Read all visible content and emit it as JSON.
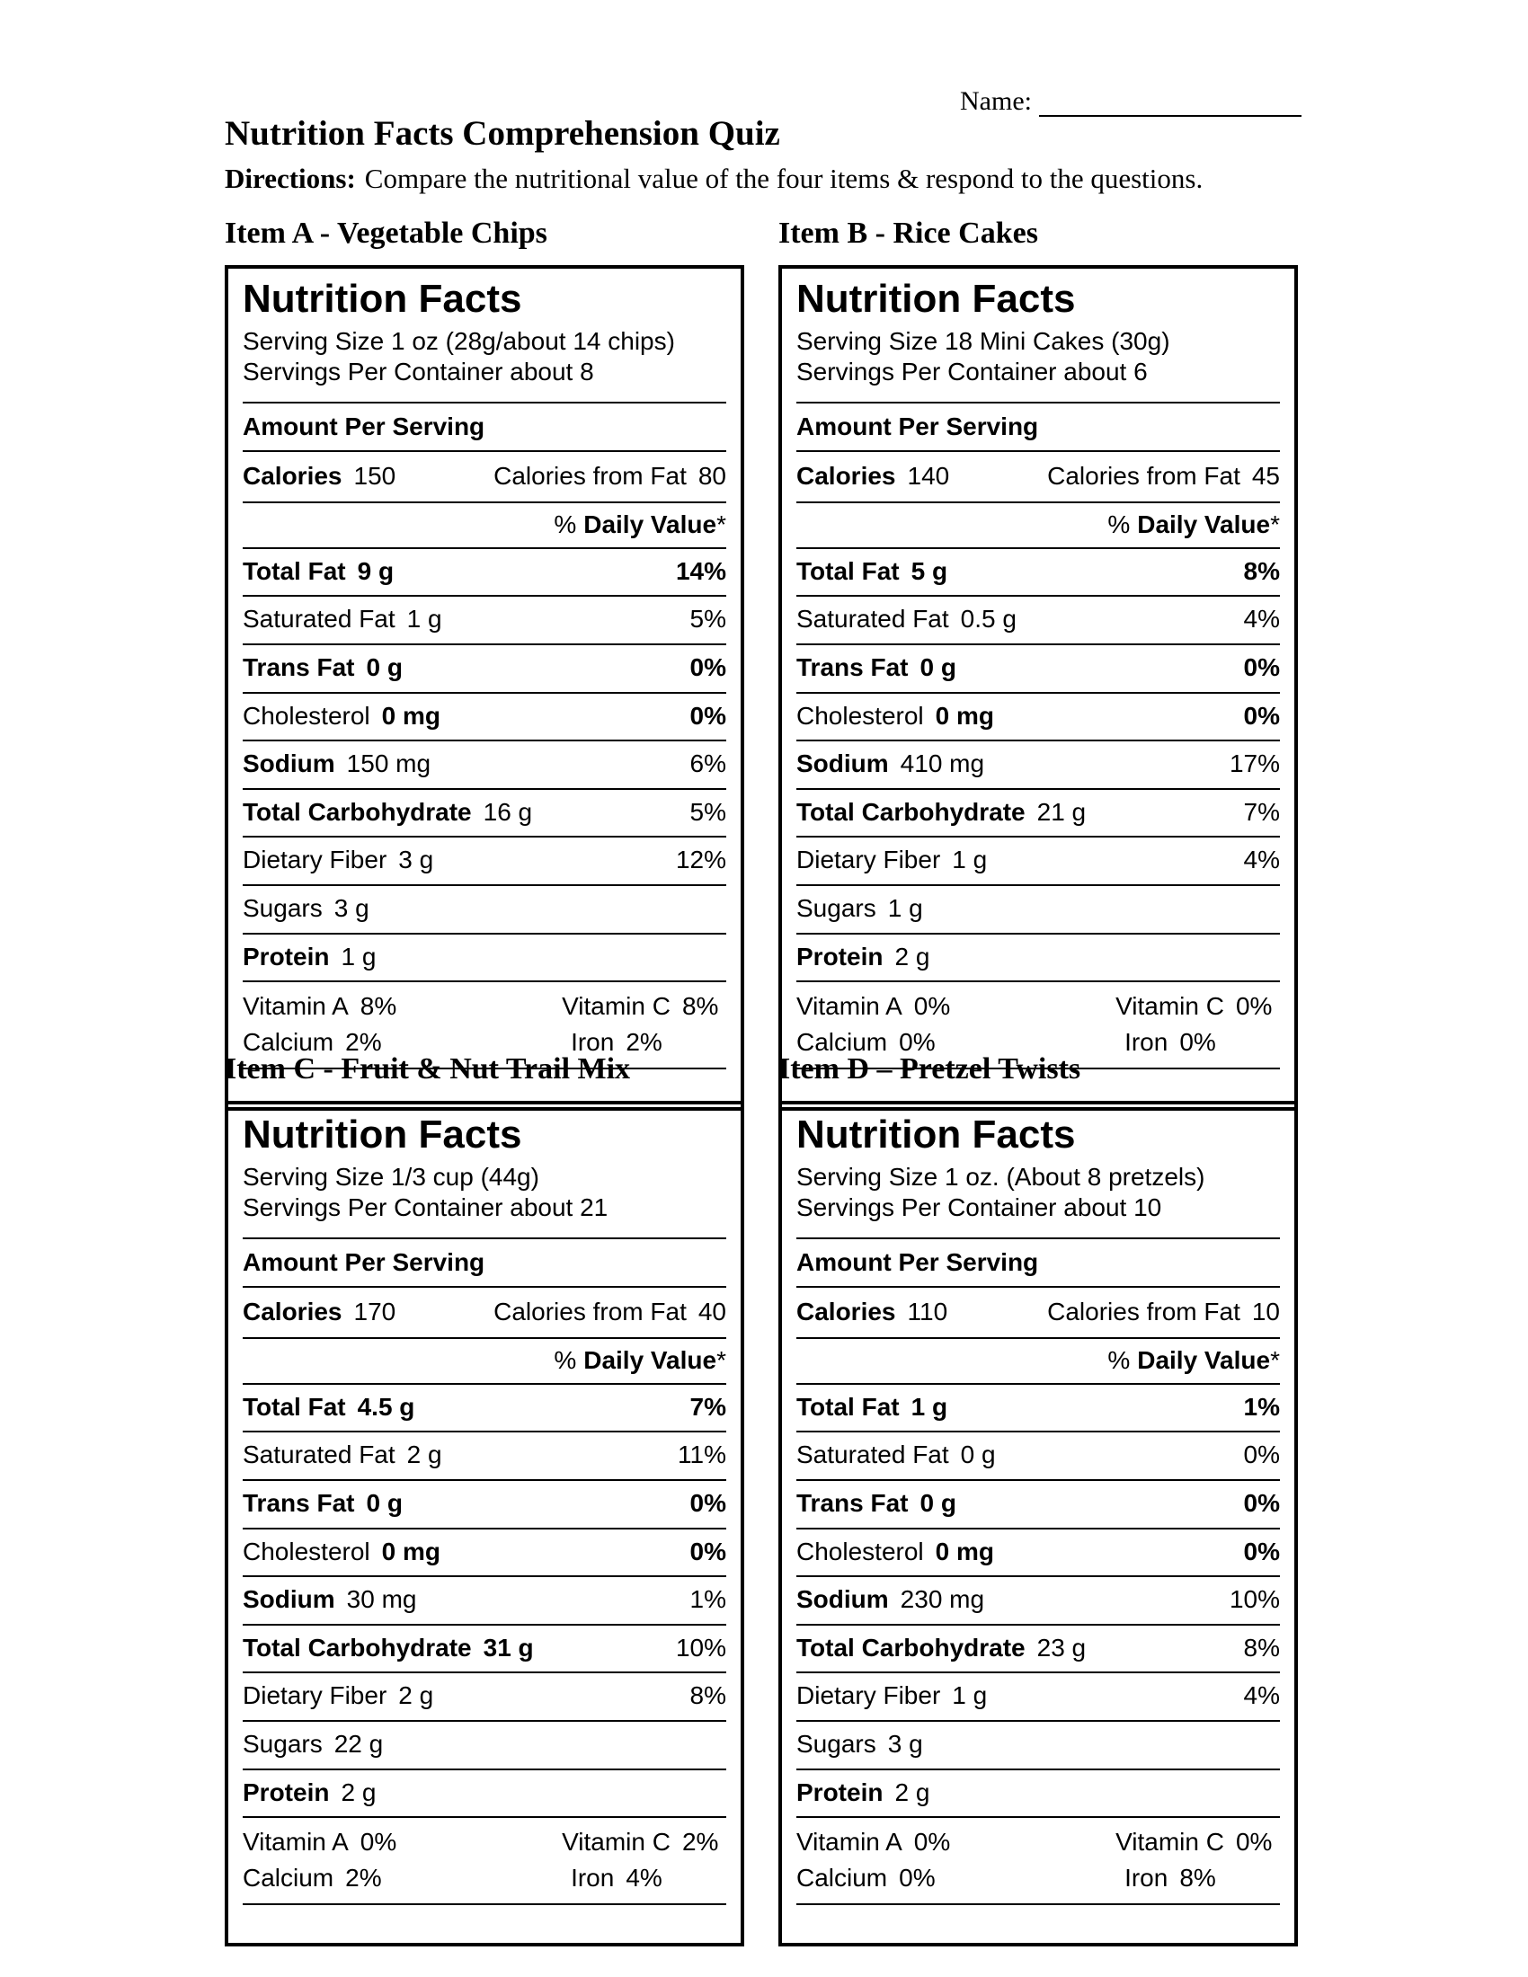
{
  "header": {
    "name_label": "Name:",
    "title": "Nutrition Facts Comprehension Quiz",
    "directions_label": "Directions:",
    "directions_text": "Compare the nutritional value of the four items & respond to the questions."
  },
  "label_strings": {
    "nf_title": "Nutrition Facts",
    "amount_per_serving": "Amount Per Serving",
    "calories_label": "Calories",
    "calories_from_fat_label": "Calories from Fat",
    "daily_value_prefix": "%",
    "daily_value_bold": "Daily Value",
    "daily_value_suffix": "*"
  },
  "items": [
    {
      "id": "A",
      "heading": "Item A - Vegetable Chips",
      "serving_size": "Serving Size 1 oz (28g/about 14 chips)",
      "servings_per_container": "Servings Per Container about 8",
      "calories": "150",
      "calories_from_fat": "80",
      "rows": [
        {
          "label": "Total Fat",
          "amount": "9 g",
          "pct": "14%",
          "bold_label": true,
          "bold_amount": true,
          "bold_pct": true
        },
        {
          "label": "Saturated Fat",
          "amount": "1 g",
          "pct": "5%",
          "bold_label": false,
          "bold_amount": false,
          "bold_pct": false
        },
        {
          "label": "Trans Fat",
          "amount": "0 g",
          "pct": "0%",
          "bold_label": true,
          "bold_amount": true,
          "bold_pct": true
        },
        {
          "label": "Cholesterol",
          "amount": "0 mg",
          "pct": "0%",
          "bold_label": false,
          "bold_amount": true,
          "bold_pct": true
        },
        {
          "label": "Sodium",
          "amount": "150 mg",
          "pct": "6%",
          "bold_label": true,
          "bold_amount": false,
          "bold_pct": false
        },
        {
          "label": "Total Carbohydrate",
          "amount": "16 g",
          "pct": "5%",
          "bold_label": true,
          "bold_amount": false,
          "bold_pct": false
        },
        {
          "label": "Dietary Fiber",
          "amount": "3 g",
          "pct": "12%",
          "bold_label": false,
          "bold_amount": false,
          "bold_pct": false
        },
        {
          "label": "Sugars",
          "amount": "3 g",
          "pct": "",
          "bold_label": false,
          "bold_amount": false,
          "bold_pct": false
        },
        {
          "label": "Protein",
          "amount": "1 g",
          "pct": "",
          "bold_label": true,
          "bold_amount": false,
          "bold_pct": false
        }
      ],
      "micros": [
        {
          "name": "Vitamin A",
          "value": "8%"
        },
        {
          "name": "Vitamin C",
          "value": "8%"
        },
        {
          "name": "Calcium",
          "value": "2%"
        },
        {
          "name": "Iron",
          "value": "2%"
        }
      ]
    },
    {
      "id": "B",
      "heading": "Item B - Rice Cakes",
      "serving_size": "Serving Size 18 Mini Cakes (30g)",
      "servings_per_container": "Servings Per Container about 6",
      "calories": "140",
      "calories_from_fat": "45",
      "rows": [
        {
          "label": "Total Fat",
          "amount": "5 g",
          "pct": "8%",
          "bold_label": true,
          "bold_amount": true,
          "bold_pct": true
        },
        {
          "label": "Saturated Fat",
          "amount": "0.5 g",
          "pct": "4%",
          "bold_label": false,
          "bold_amount": false,
          "bold_pct": false
        },
        {
          "label": "Trans Fat",
          "amount": "0 g",
          "pct": "0%",
          "bold_label": true,
          "bold_amount": true,
          "bold_pct": true
        },
        {
          "label": "Cholesterol",
          "amount": "0 mg",
          "pct": "0%",
          "bold_label": false,
          "bold_amount": true,
          "bold_pct": true
        },
        {
          "label": "Sodium",
          "amount": "410 mg",
          "pct": "17%",
          "bold_label": true,
          "bold_amount": false,
          "bold_pct": false
        },
        {
          "label": "Total Carbohydrate",
          "amount": "21 g",
          "pct": "7%",
          "bold_label": true,
          "bold_amount": false,
          "bold_pct": false
        },
        {
          "label": "Dietary Fiber",
          "amount": "1 g",
          "pct": "4%",
          "bold_label": false,
          "bold_amount": false,
          "bold_pct": false
        },
        {
          "label": "Sugars",
          "amount": "1 g",
          "pct": "",
          "bold_label": false,
          "bold_amount": false,
          "bold_pct": false
        },
        {
          "label": "Protein",
          "amount": "2 g",
          "pct": "",
          "bold_label": true,
          "bold_amount": false,
          "bold_pct": false
        }
      ],
      "micros": [
        {
          "name": "Vitamin A",
          "value": "0%"
        },
        {
          "name": "Vitamin C",
          "value": "0%"
        },
        {
          "name": "Calcium",
          "value": "0%"
        },
        {
          "name": "Iron",
          "value": "0%"
        }
      ]
    },
    {
      "id": "C",
      "heading": "Item C - Fruit & Nut Trail Mix",
      "serving_size": "Serving Size 1/3 cup (44g)",
      "servings_per_container": "Servings Per Container about 21",
      "calories": "170",
      "calories_from_fat": "40",
      "rows": [
        {
          "label": "Total Fat",
          "amount": "4.5 g",
          "pct": "7%",
          "bold_label": true,
          "bold_amount": true,
          "bold_pct": true
        },
        {
          "label": "Saturated Fat",
          "amount": "2 g",
          "pct": "11%",
          "bold_label": false,
          "bold_amount": false,
          "bold_pct": false
        },
        {
          "label": "Trans Fat",
          "amount": "0 g",
          "pct": "0%",
          "bold_label": true,
          "bold_amount": true,
          "bold_pct": true
        },
        {
          "label": "Cholesterol",
          "amount": "0 mg",
          "pct": "0%",
          "bold_label": false,
          "bold_amount": true,
          "bold_pct": true
        },
        {
          "label": "Sodium",
          "amount": "30 mg",
          "pct": "1%",
          "bold_label": true,
          "bold_amount": false,
          "bold_pct": false
        },
        {
          "label": "Total Carbohydrate",
          "amount": "31 g",
          "pct": "10%",
          "bold_label": true,
          "bold_amount": true,
          "bold_pct": false
        },
        {
          "label": "Dietary Fiber",
          "amount": "2 g",
          "pct": "8%",
          "bold_label": false,
          "bold_amount": false,
          "bold_pct": false
        },
        {
          "label": "Sugars",
          "amount": "22 g",
          "pct": "",
          "bold_label": false,
          "bold_amount": false,
          "bold_pct": false
        },
        {
          "label": "Protein",
          "amount": "2 g",
          "pct": "",
          "bold_label": true,
          "bold_amount": false,
          "bold_pct": false
        }
      ],
      "micros": [
        {
          "name": "Vitamin A",
          "value": "0%"
        },
        {
          "name": "Vitamin C",
          "value": "2%"
        },
        {
          "name": "Calcium",
          "value": "2%"
        },
        {
          "name": "Iron",
          "value": "4%"
        }
      ]
    },
    {
      "id": "D",
      "heading": "Item D – Pretzel Twists",
      "serving_size": "Serving Size 1 oz. (About 8 pretzels)",
      "servings_per_container": "Servings Per Container about 10",
      "calories": "110",
      "calories_from_fat": "10",
      "rows": [
        {
          "label": "Total Fat",
          "amount": "1 g",
          "pct": "1%",
          "bold_label": true,
          "bold_amount": true,
          "bold_pct": true
        },
        {
          "label": "Saturated Fat",
          "amount": "0 g",
          "pct": "0%",
          "bold_label": false,
          "bold_amount": false,
          "bold_pct": false
        },
        {
          "label": "Trans Fat",
          "amount": "0 g",
          "pct": "0%",
          "bold_label": true,
          "bold_amount": true,
          "bold_pct": true
        },
        {
          "label": "Cholesterol",
          "amount": "0 mg",
          "pct": "0%",
          "bold_label": false,
          "bold_amount": true,
          "bold_pct": true
        },
        {
          "label": "Sodium",
          "amount": "230 mg",
          "pct": "10%",
          "bold_label": true,
          "bold_amount": false,
          "bold_pct": false
        },
        {
          "label": "Total Carbohydrate",
          "amount": "23 g",
          "pct": "8%",
          "bold_label": true,
          "bold_amount": false,
          "bold_pct": false
        },
        {
          "label": "Dietary Fiber",
          "amount": "1 g",
          "pct": "4%",
          "bold_label": false,
          "bold_amount": false,
          "bold_pct": false
        },
        {
          "label": "Sugars",
          "amount": "3 g",
          "pct": "",
          "bold_label": false,
          "bold_amount": false,
          "bold_pct": false
        },
        {
          "label": "Protein",
          "amount": "2 g",
          "pct": "",
          "bold_label": true,
          "bold_amount": false,
          "bold_pct": false
        }
      ],
      "micros": [
        {
          "name": "Vitamin A",
          "value": "0%"
        },
        {
          "name": "Vitamin C",
          "value": "0%"
        },
        {
          "name": "Calcium",
          "value": "0%"
        },
        {
          "name": "Iron",
          "value": "8%"
        }
      ]
    }
  ]
}
